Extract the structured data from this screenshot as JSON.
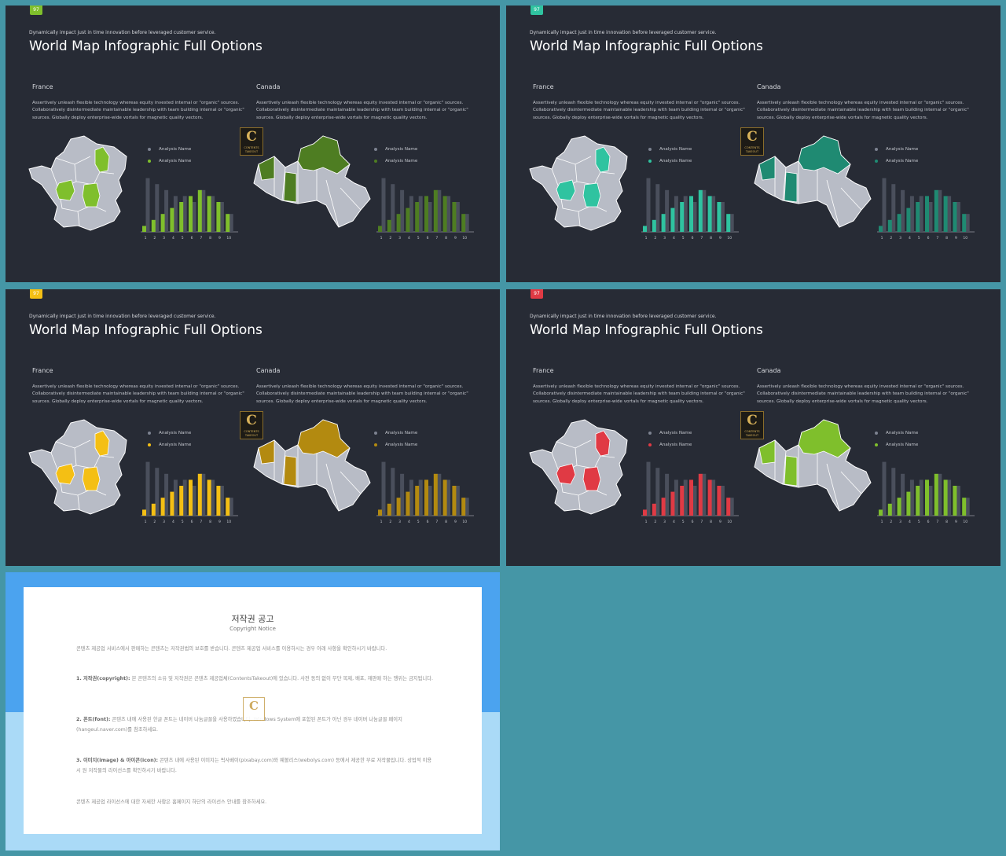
{
  "slides": [
    {
      "badge": "97",
      "accent": "#7fbf2c",
      "secondary_accent": "#4e7d22",
      "subheadline": "Dynamically impact just in time innovation  before leveraged customer service.",
      "title": "World Map Infographic Full Options",
      "panels": [
        {
          "country": "France",
          "description": "Assertively unleash flexible technology whereas equity invested internal or \"organic\" sources. Collaboratively disintermediate maintainable leadership with team building internal or \"organic\" sources. Globally deploy enterprise-wide vortals for magnetic quality vectors.",
          "legend": [
            "Analysis Name",
            "Analysis Name"
          ]
        },
        {
          "country": "Canada",
          "description": "Assertively unleash flexible technology whereas equity invested internal or \"organic\" sources. Collaboratively disintermediate maintainable leadership with team building internal or \"organic\" sources. Globally deploy enterprise-wide vortals for magnetic quality vectors.",
          "legend": [
            "Analysis Name",
            "Analysis Name"
          ]
        }
      ]
    },
    {
      "badge": "97",
      "accent": "#2fc3a0",
      "secondary_accent": "#1f8a72",
      "subheadline": "Dynamically impact just in time innovation  before leveraged customer service.",
      "title": "World Map Infographic Full Options",
      "panels": [
        {
          "country": "France",
          "description": "Assertively unleash flexible technology whereas equity invested internal or \"organic\" sources. Collaboratively disintermediate maintainable leadership with team building internal or \"organic\" sources. Globally deploy enterprise-wide vortals for magnetic quality vectors.",
          "legend": [
            "Analysis Name",
            "Analysis Name"
          ]
        },
        {
          "country": "Canada",
          "description": "Assertively unleash flexible technology whereas equity invested internal or \"organic\" sources. Collaboratively disintermediate maintainable leadership with team building internal or \"organic\" sources. Globally deploy enterprise-wide vortals for magnetic quality vectors.",
          "legend": [
            "Analysis Name",
            "Analysis Name"
          ]
        }
      ]
    },
    {
      "badge": "97",
      "accent": "#f4bf14",
      "secondary_accent": "#b38a10",
      "subheadline": "Dynamically impact just in time innovation  before leveraged customer service.",
      "title": "World Map Infographic Full Options",
      "panels": [
        {
          "country": "France",
          "description": "Assertively unleash flexible technology whereas equity invested internal or \"organic\" sources. Collaboratively disintermediate maintainable leadership with team building internal or \"organic\" sources. Globally deploy enterprise-wide vortals for magnetic quality vectors.",
          "legend": [
            "Analysis Name",
            "Analysis Name"
          ]
        },
        {
          "country": "Canada",
          "description": "Assertively unleash flexible technology whereas equity invested internal or \"organic\" sources. Collaboratively disintermediate maintainable leadership with team building internal or \"organic\" sources. Globally deploy enterprise-wide vortals for magnetic quality vectors.",
          "legend": [
            "Analysis Name",
            "Analysis Name"
          ]
        }
      ]
    },
    {
      "badge": "97",
      "accent": "#e03a44",
      "secondary_accent": "#7fbf2c",
      "subheadline": "Dynamically impact just in time innovation  before leveraged customer service.",
      "title": "World Map Infographic Full Options",
      "panels": [
        {
          "country": "France",
          "description": "Assertively unleash flexible technology whereas equity invested internal or \"organic\" sources. Collaboratively disintermediate maintainable leadership with team building internal or \"organic\" sources. Globally deploy enterprise-wide vortals for magnetic quality vectors.",
          "legend": [
            "Analysis Name",
            "Analysis Name"
          ]
        },
        {
          "country": "Canada",
          "description": "Assertively unleash flexible technology whereas equity invested internal or \"organic\" sources. Collaboratively disintermediate maintainable leadership with team building internal or \"organic\" sources. Globally deploy enterprise-wide vortals for magnetic quality vectors.",
          "legend": [
            "Analysis Name",
            "Analysis Name"
          ]
        }
      ]
    }
  ],
  "chart_data": [
    {
      "type": "bar",
      "categories": [
        "1",
        "2",
        "3",
        "4",
        "5",
        "6",
        "7",
        "8",
        "9",
        "10"
      ],
      "series": [
        {
          "values": [
            9,
            8,
            7,
            6,
            6,
            5,
            7,
            6,
            5,
            3
          ]
        },
        {
          "values": [
            1,
            2,
            3,
            4,
            5,
            6,
            7,
            6,
            5,
            3
          ]
        }
      ],
      "ylim": [
        0,
        10
      ]
    }
  ],
  "copyright": {
    "title": "저작권 공고",
    "subtitle": "Copyright Notice",
    "intro": "콘텐츠 제공업 서비스에서 판매하는 콘텐츠는 저작권법의 보호를 받습니다. 콘텐츠 제공업 서비스를 이용하시는 경우 아래 사항을 확인하시기 바랍니다.",
    "section1_label": "1. 저작권(copyright):",
    "section1": "본 콘텐츠의 소유 및 저작권은 콘텐츠 제공업체(ContentsTakeout)에 있습니다. 사전 동의 없이 무단 복제, 배포, 재판매 하는 행위는 금지됩니다.",
    "section2_label": "2. 폰트(font):",
    "section2": "콘텐츠 내에 사용된 한글 폰트는 네이버 나눔글꼴을 사용하였습니다. Windows System에 포함된 폰트가 아닌 경우 네이버 나눔글꼴 페이지(hangeul.naver.com)를 참조하세요.",
    "section3_label": "3. 이미지(image) & 아이콘(icon):",
    "section3": "콘텐츠 내에 사용된 이미지는 픽사베이(pixabay.com)와 웨볼리스(webolys.com) 등에서 제공한 무료 저작물입니다. 상업적 이용 시 원 저작물의 라이선스를 확인하시기 바랍니다.",
    "footer": "콘텐츠 제공업 라이선스에 대한 자세한 사항은 홈페이지 하단의 라이선스 안내를 참조하세요."
  },
  "logo_text": "CONTENTS TAKEOUT"
}
